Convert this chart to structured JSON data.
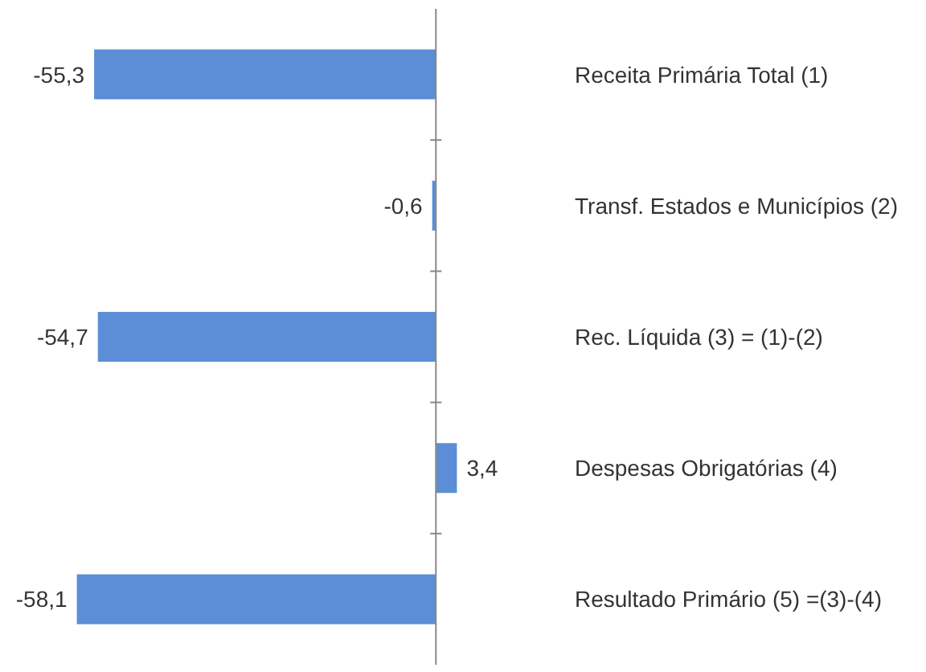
{
  "chart_data": {
    "type": "bar",
    "orientation": "horizontal",
    "categories": [
      "Receita Primária Total (1)",
      "Transf. Estados e Municípios (2)",
      "Rec. Líquida (3) = (1)-(2)",
      "Despesas Obrigatórias (4)",
      "Resultado Primário (5) =(3)-(4)"
    ],
    "values": [
      -55.3,
      -0.6,
      -54.7,
      3.4,
      -58.1
    ],
    "value_labels": [
      "-55,3",
      "-0,6",
      "-54,7",
      "3,4",
      "-58,1"
    ],
    "color": "#5b8ed6"
  }
}
